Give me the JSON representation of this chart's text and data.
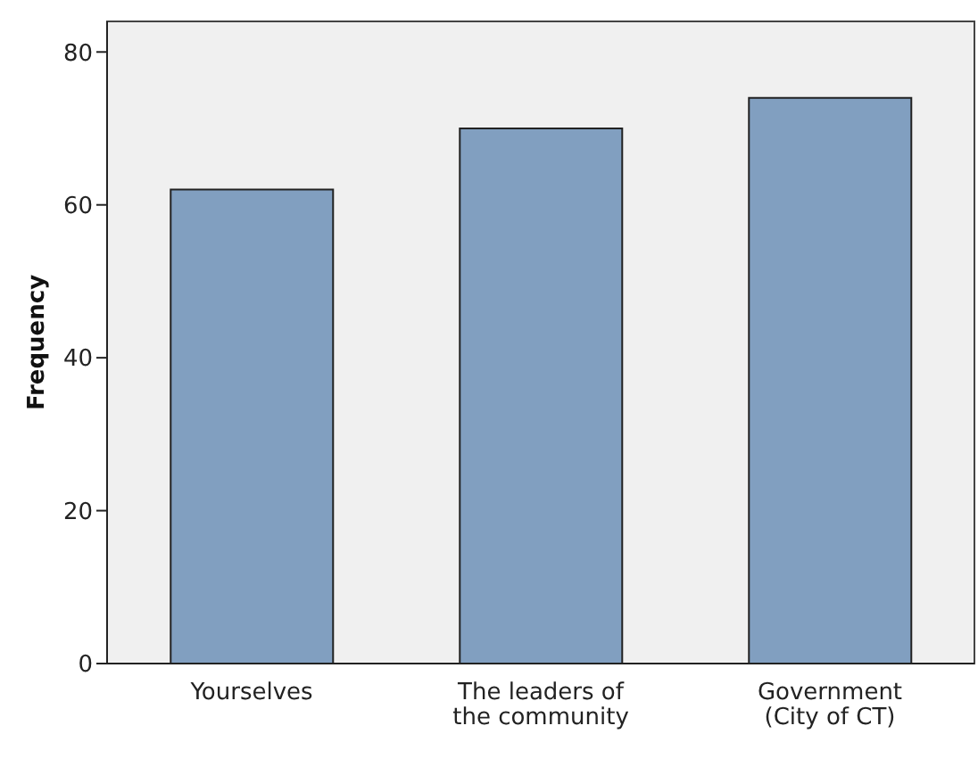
{
  "chart_data": {
    "type": "bar",
    "ylabel": "Frequency",
    "categories": [
      "Yourselves",
      "The leaders of the community",
      "Government (City of CT)"
    ],
    "values": [
      62,
      70,
      74
    ],
    "color": "#819fc0",
    "ylim": [
      0,
      84
    ],
    "yticks": [
      0,
      20,
      40,
      60,
      80
    ]
  }
}
